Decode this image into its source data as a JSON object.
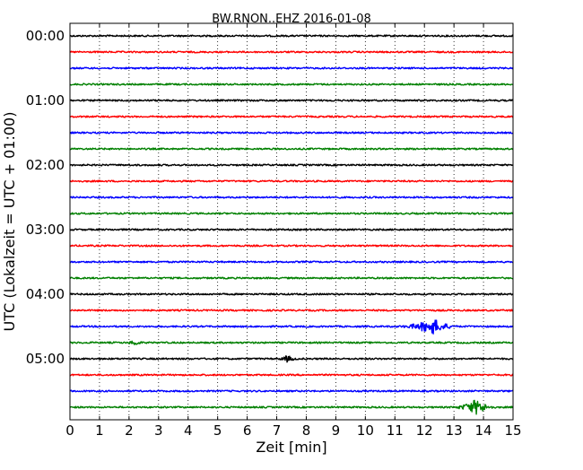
{
  "chart_data": {
    "type": "line",
    "title": "BW.RNON..EHZ 2016-01-08",
    "xlabel": "Zeit  [min]",
    "ylabel": "UTC (Lokalzeit = UTC + 01:00)",
    "xlim": [
      0,
      15
    ],
    "x_ticks": [
      "0",
      "1",
      "2",
      "3",
      "4",
      "5",
      "6",
      "7",
      "8",
      "9",
      "10",
      "11",
      "12",
      "13",
      "14",
      "15"
    ],
    "y_ticks": [
      "00:00",
      "01:00",
      "02:00",
      "03:00",
      "04:00",
      "05:00"
    ],
    "grid": "vertical dotted at each minute",
    "trace_interval_minutes": 15,
    "trace_colors": [
      "#000000",
      "#ff0000",
      "#0000ff",
      "#008000"
    ],
    "trace_count": 24,
    "events": [
      {
        "trace_start": "04:30",
        "x_start": 11.0,
        "x_peak": 12.3,
        "x_end": 13.2,
        "amplitude": "high"
      },
      {
        "trace_start": "05:45",
        "x_start": 12.9,
        "x_peak": 13.75,
        "x_end": 14.5,
        "amplitude": "high"
      },
      {
        "trace_start": "05:00",
        "x_start": 7.0,
        "x_peak": 7.35,
        "x_end": 7.8,
        "amplitude": "low"
      },
      {
        "trace_start": "04:45",
        "x_start": 1.9,
        "x_peak": 2.2,
        "x_end": 2.5,
        "amplitude": "low"
      }
    ]
  }
}
